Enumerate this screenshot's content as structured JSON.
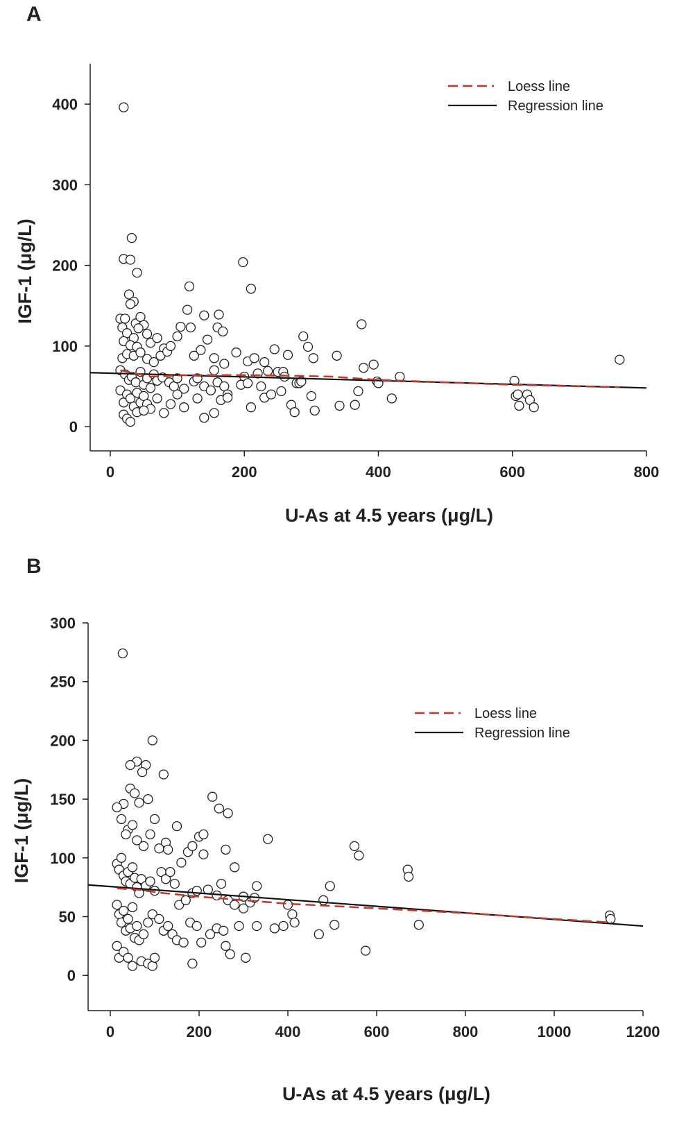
{
  "panels": [
    {
      "label": "A"
    },
    {
      "label": "B"
    }
  ],
  "colors": {
    "loess": "#c0392b",
    "regression": "#111111",
    "point_stroke": "#222222"
  },
  "chart_data": [
    {
      "type": "scatter",
      "panel": "A",
      "xlabel": "U-As at 4.5 years (μg/L)",
      "ylabel": "IGF-1 (μg/L)",
      "xlim": [
        -30,
        800
      ],
      "ylim": [
        -30,
        450
      ],
      "x_ticks": [
        0,
        200,
        400,
        600,
        800
      ],
      "y_ticks": [
        0,
        100,
        200,
        300,
        400
      ],
      "legend": {
        "position": "top-right",
        "entries": [
          "Loess line",
          "Regression line"
        ]
      },
      "regression_line": {
        "x": [
          -30,
          800
        ],
        "y": [
          67,
          48
        ]
      },
      "loess_line": {
        "x": [
          15,
          60,
          120,
          200,
          280,
          330,
          400,
          500,
          600,
          700,
          760
        ],
        "y": [
          70,
          62,
          64,
          64,
          63,
          62,
          58,
          55,
          52,
          50,
          49
        ]
      },
      "points": [
        [
          20,
          396
        ],
        [
          20,
          208
        ],
        [
          30,
          207
        ],
        [
          32,
          234
        ],
        [
          40,
          191
        ],
        [
          28,
          164
        ],
        [
          35,
          155
        ],
        [
          30,
          152
        ],
        [
          15,
          134
        ],
        [
          22,
          134
        ],
        [
          38,
          128
        ],
        [
          45,
          136
        ],
        [
          50,
          126
        ],
        [
          18,
          123
        ],
        [
          42,
          122
        ],
        [
          25,
          116
        ],
        [
          35,
          110
        ],
        [
          55,
          115
        ],
        [
          20,
          106
        ],
        [
          30,
          101
        ],
        [
          40,
          99
        ],
        [
          60,
          104
        ],
        [
          70,
          110
        ],
        [
          80,
          97
        ],
        [
          18,
          85
        ],
        [
          25,
          90
        ],
        [
          35,
          88
        ],
        [
          45,
          92
        ],
        [
          55,
          84
        ],
        [
          65,
          80
        ],
        [
          75,
          88
        ],
        [
          85,
          93
        ],
        [
          90,
          100
        ],
        [
          100,
          112
        ],
        [
          105,
          124
        ],
        [
          115,
          145
        ],
        [
          120,
          123
        ],
        [
          118,
          174
        ],
        [
          125,
          88
        ],
        [
          135,
          95
        ],
        [
          140,
          138
        ],
        [
          145,
          108
        ],
        [
          155,
          85
        ],
        [
          160,
          123
        ],
        [
          162,
          139
        ],
        [
          168,
          118
        ],
        [
          170,
          78
        ],
        [
          155,
          70
        ],
        [
          15,
          70
        ],
        [
          22,
          65
        ],
        [
          28,
          58
        ],
        [
          32,
          62
        ],
        [
          38,
          55
        ],
        [
          45,
          68
        ],
        [
          50,
          52
        ],
        [
          55,
          60
        ],
        [
          60,
          48
        ],
        [
          65,
          65
        ],
        [
          70,
          57
        ],
        [
          78,
          61
        ],
        [
          88,
          55
        ],
        [
          95,
          50
        ],
        [
          100,
          60
        ],
        [
          110,
          47
        ],
        [
          125,
          56
        ],
        [
          130,
          60
        ],
        [
          140,
          50
        ],
        [
          150,
          45
        ],
        [
          160,
          55
        ],
        [
          170,
          50
        ],
        [
          175,
          40
        ],
        [
          15,
          45
        ],
        [
          20,
          30
        ],
        [
          25,
          40
        ],
        [
          30,
          35
        ],
        [
          35,
          25
        ],
        [
          40,
          42
        ],
        [
          45,
          30
        ],
        [
          50,
          38
        ],
        [
          55,
          28
        ],
        [
          60,
          22
        ],
        [
          70,
          35
        ],
        [
          80,
          17
        ],
        [
          90,
          28
        ],
        [
          100,
          40
        ],
        [
          110,
          24
        ],
        [
          130,
          35
        ],
        [
          140,
          11
        ],
        [
          155,
          17
        ],
        [
          165,
          33
        ],
        [
          175,
          36
        ],
        [
          20,
          15
        ],
        [
          25,
          10
        ],
        [
          30,
          6
        ],
        [
          40,
          18
        ],
        [
          50,
          20
        ],
        [
          188,
          92
        ],
        [
          198,
          204
        ],
        [
          205,
          81
        ],
        [
          210,
          171
        ],
        [
          215,
          85
        ],
        [
          220,
          66
        ],
        [
          230,
          80
        ],
        [
          235,
          69
        ],
        [
          245,
          96
        ],
        [
          250,
          68
        ],
        [
          258,
          68
        ],
        [
          265,
          89
        ],
        [
          200,
          62
        ],
        [
          195,
          52
        ],
        [
          205,
          54
        ],
        [
          210,
          24
        ],
        [
          225,
          50
        ],
        [
          230,
          36
        ],
        [
          240,
          40
        ],
        [
          255,
          44
        ],
        [
          260,
          62
        ],
        [
          270,
          27
        ],
        [
          275,
          18
        ],
        [
          278,
          54
        ],
        [
          282,
          54
        ],
        [
          285,
          56
        ],
        [
          288,
          112
        ],
        [
          295,
          99
        ],
        [
          300,
          38
        ],
        [
          303,
          85
        ],
        [
          305,
          20
        ],
        [
          338,
          88
        ],
        [
          342,
          26
        ],
        [
          365,
          27
        ],
        [
          370,
          44
        ],
        [
          375,
          127
        ],
        [
          378,
          73
        ],
        [
          393,
          77
        ],
        [
          398,
          56
        ],
        [
          400,
          54
        ],
        [
          420,
          35
        ],
        [
          432,
          62
        ],
        [
          603,
          57
        ],
        [
          605,
          38
        ],
        [
          608,
          40
        ],
        [
          610,
          26
        ],
        [
          622,
          40
        ],
        [
          626,
          33
        ],
        [
          632,
          24
        ],
        [
          760,
          83
        ]
      ]
    },
    {
      "type": "scatter",
      "panel": "B",
      "xlabel": "U-As at 4.5 years (μg/L)",
      "ylabel": "IGF-1 (μg/L)",
      "xlim": [
        -50,
        1200
      ],
      "ylim": [
        -30,
        300
      ],
      "x_ticks": [
        0,
        200,
        400,
        600,
        800,
        1000,
        1200
      ],
      "y_ticks": [
        0,
        50,
        100,
        150,
        200,
        250,
        300
      ],
      "legend": {
        "position": "top-right",
        "entries": [
          "Loess line",
          "Regression line"
        ]
      },
      "regression_line": {
        "x": [
          -50,
          1200
        ],
        "y": [
          77,
          42
        ]
      },
      "loess_line": {
        "x": [
          15,
          60,
          120,
          200,
          300,
          400,
          500,
          600,
          800,
          1000,
          1130
        ],
        "y": [
          74,
          73,
          70,
          67,
          64,
          61,
          59,
          57,
          53,
          48,
          45
        ]
      },
      "points": [
        [
          28,
          274
        ],
        [
          95,
          200
        ],
        [
          60,
          182
        ],
        [
          45,
          179
        ],
        [
          80,
          179
        ],
        [
          120,
          171
        ],
        [
          72,
          173
        ],
        [
          45,
          159
        ],
        [
          55,
          155
        ],
        [
          65,
          147
        ],
        [
          30,
          146
        ],
        [
          15,
          143
        ],
        [
          85,
          150
        ],
        [
          100,
          133
        ],
        [
          90,
          120
        ],
        [
          40,
          124
        ],
        [
          50,
          128
        ],
        [
          25,
          133
        ],
        [
          35,
          120
        ],
        [
          60,
          115
        ],
        [
          75,
          110
        ],
        [
          110,
          108
        ],
        [
          125,
          113
        ],
        [
          130,
          107
        ],
        [
          150,
          127
        ],
        [
          160,
          96
        ],
        [
          175,
          105
        ],
        [
          185,
          110
        ],
        [
          200,
          118
        ],
        [
          210,
          120
        ],
        [
          230,
          152
        ],
        [
          245,
          142
        ],
        [
          265,
          138
        ],
        [
          260,
          107
        ],
        [
          280,
          92
        ],
        [
          210,
          103
        ],
        [
          15,
          95
        ],
        [
          20,
          90
        ],
        [
          25,
          100
        ],
        [
          30,
          85
        ],
        [
          35,
          80
        ],
        [
          40,
          88
        ],
        [
          45,
          78
        ],
        [
          50,
          92
        ],
        [
          55,
          83
        ],
        [
          60,
          75
        ],
        [
          65,
          70
        ],
        [
          70,
          82
        ],
        [
          80,
          76
        ],
        [
          90,
          80
        ],
        [
          100,
          72
        ],
        [
          115,
          88
        ],
        [
          125,
          82
        ],
        [
          135,
          88
        ],
        [
          145,
          78
        ],
        [
          155,
          60
        ],
        [
          170,
          64
        ],
        [
          185,
          70
        ],
        [
          195,
          72
        ],
        [
          220,
          73
        ],
        [
          240,
          68
        ],
        [
          250,
          78
        ],
        [
          265,
          64
        ],
        [
          280,
          60
        ],
        [
          300,
          57
        ],
        [
          315,
          62
        ],
        [
          325,
          66
        ],
        [
          330,
          76
        ],
        [
          300,
          67
        ],
        [
          15,
          60
        ],
        [
          20,
          52
        ],
        [
          25,
          45
        ],
        [
          30,
          55
        ],
        [
          35,
          38
        ],
        [
          40,
          48
        ],
        [
          45,
          40
        ],
        [
          50,
          58
        ],
        [
          55,
          32
        ],
        [
          60,
          42
        ],
        [
          65,
          30
        ],
        [
          75,
          35
        ],
        [
          85,
          45
        ],
        [
          95,
          52
        ],
        [
          110,
          48
        ],
        [
          120,
          38
        ],
        [
          130,
          42
        ],
        [
          140,
          35
        ],
        [
          150,
          30
        ],
        [
          165,
          28
        ],
        [
          180,
          45
        ],
        [
          195,
          42
        ],
        [
          205,
          28
        ],
        [
          225,
          35
        ],
        [
          240,
          40
        ],
        [
          255,
          38
        ],
        [
          270,
          18
        ],
        [
          290,
          42
        ],
        [
          305,
          15
        ],
        [
          330,
          42
        ],
        [
          15,
          25
        ],
        [
          20,
          15
        ],
        [
          30,
          20
        ],
        [
          40,
          15
        ],
        [
          50,
          8
        ],
        [
          70,
          12
        ],
        [
          85,
          10
        ],
        [
          95,
          8
        ],
        [
          100,
          15
        ],
        [
          185,
          10
        ],
        [
          260,
          25
        ],
        [
          355,
          116
        ],
        [
          370,
          40
        ],
        [
          390,
          42
        ],
        [
          400,
          60
        ],
        [
          410,
          52
        ],
        [
          415,
          45
        ],
        [
          470,
          35
        ],
        [
          480,
          64
        ],
        [
          495,
          76
        ],
        [
          505,
          43
        ],
        [
          550,
          110
        ],
        [
          560,
          102
        ],
        [
          575,
          21
        ],
        [
          670,
          90
        ],
        [
          672,
          84
        ],
        [
          695,
          43
        ],
        [
          1125,
          51
        ],
        [
          1127,
          48
        ]
      ]
    }
  ]
}
